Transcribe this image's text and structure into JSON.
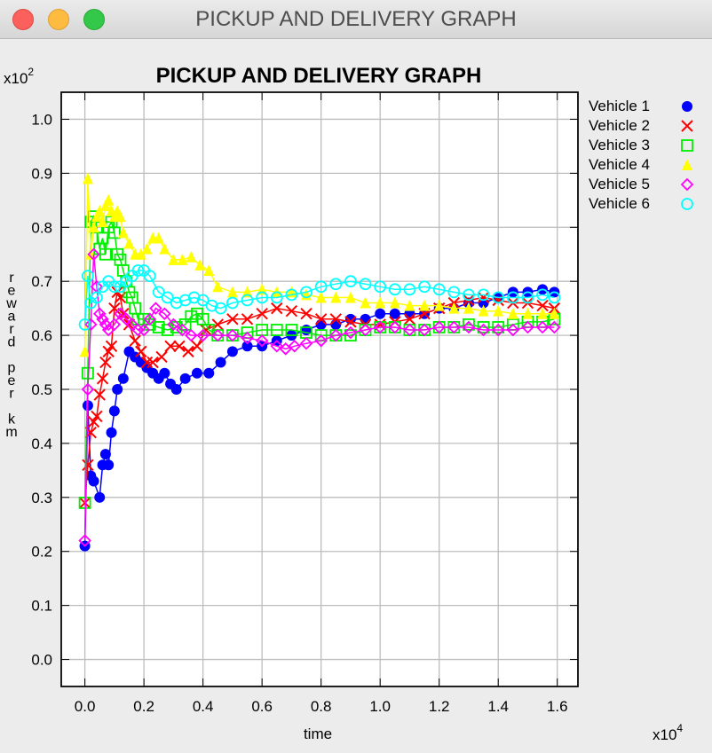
{
  "window": {
    "title": "PICKUP AND DELIVERY GRAPH"
  },
  "chart_data": {
    "type": "line",
    "title": "PICKUP AND DELIVERY GRAPH",
    "xlabel": "time",
    "ylabel": "reward per km",
    "x_scale_label": "x10^4",
    "y_scale_label": "x10^2",
    "x_ticks": [
      "0.0",
      "0.2",
      "0.4",
      "0.6",
      "0.8",
      "1.0",
      "1.2",
      "1.4",
      "1.6"
    ],
    "y_ticks": [
      "0.0",
      "0.1",
      "0.2",
      "0.3",
      "0.4",
      "0.5",
      "0.6",
      "0.7",
      "0.8",
      "0.9",
      "1.0"
    ],
    "xlim": [
      -0.08,
      1.67
    ],
    "ylim": [
      -0.05,
      1.05
    ],
    "grid": true,
    "legend_position": "right",
    "series": [
      {
        "name": "Vehicle 1",
        "color": "#0000ff",
        "marker": "filled-circle",
        "points": [
          [
            0.0,
            0.21
          ],
          [
            0.01,
            0.47
          ],
          [
            0.02,
            0.34
          ],
          [
            0.03,
            0.33
          ],
          [
            0.05,
            0.3
          ],
          [
            0.06,
            0.36
          ],
          [
            0.07,
            0.38
          ],
          [
            0.08,
            0.36
          ],
          [
            0.09,
            0.42
          ],
          [
            0.1,
            0.46
          ],
          [
            0.11,
            0.5
          ],
          [
            0.13,
            0.52
          ],
          [
            0.15,
            0.57
          ],
          [
            0.17,
            0.56
          ],
          [
            0.19,
            0.55
          ],
          [
            0.21,
            0.54
          ],
          [
            0.23,
            0.53
          ],
          [
            0.25,
            0.52
          ],
          [
            0.27,
            0.53
          ],
          [
            0.29,
            0.51
          ],
          [
            0.31,
            0.5
          ],
          [
            0.34,
            0.52
          ],
          [
            0.38,
            0.53
          ],
          [
            0.42,
            0.53
          ],
          [
            0.46,
            0.55
          ],
          [
            0.5,
            0.57
          ],
          [
            0.55,
            0.58
          ],
          [
            0.6,
            0.58
          ],
          [
            0.65,
            0.59
          ],
          [
            0.7,
            0.6
          ],
          [
            0.75,
            0.61
          ],
          [
            0.8,
            0.62
          ],
          [
            0.85,
            0.62
          ],
          [
            0.9,
            0.63
          ],
          [
            0.95,
            0.63
          ],
          [
            1.0,
            0.64
          ],
          [
            1.05,
            0.64
          ],
          [
            1.1,
            0.64
          ],
          [
            1.15,
            0.64
          ],
          [
            1.2,
            0.65
          ],
          [
            1.25,
            0.65
          ],
          [
            1.3,
            0.66
          ],
          [
            1.35,
            0.66
          ],
          [
            1.4,
            0.67
          ],
          [
            1.45,
            0.68
          ],
          [
            1.5,
            0.68
          ],
          [
            1.55,
            0.685
          ],
          [
            1.59,
            0.68
          ]
        ]
      },
      {
        "name": "Vehicle 2",
        "color": "#ff0000",
        "marker": "x",
        "points": [
          [
            0.0,
            0.29
          ],
          [
            0.01,
            0.36
          ],
          [
            0.02,
            0.42
          ],
          [
            0.03,
            0.44
          ],
          [
            0.04,
            0.45
          ],
          [
            0.05,
            0.49
          ],
          [
            0.06,
            0.52
          ],
          [
            0.07,
            0.55
          ],
          [
            0.08,
            0.57
          ],
          [
            0.09,
            0.58
          ],
          [
            0.1,
            0.65
          ],
          [
            0.11,
            0.68
          ],
          [
            0.12,
            0.67
          ],
          [
            0.13,
            0.64
          ],
          [
            0.15,
            0.62
          ],
          [
            0.17,
            0.59
          ],
          [
            0.19,
            0.57
          ],
          [
            0.21,
            0.55
          ],
          [
            0.23,
            0.55
          ],
          [
            0.26,
            0.56
          ],
          [
            0.29,
            0.58
          ],
          [
            0.32,
            0.58
          ],
          [
            0.35,
            0.57
          ],
          [
            0.38,
            0.58
          ],
          [
            0.41,
            0.61
          ],
          [
            0.45,
            0.62
          ],
          [
            0.5,
            0.63
          ],
          [
            0.55,
            0.63
          ],
          [
            0.6,
            0.64
          ],
          [
            0.65,
            0.65
          ],
          [
            0.7,
            0.645
          ],
          [
            0.75,
            0.64
          ],
          [
            0.8,
            0.63
          ],
          [
            0.85,
            0.63
          ],
          [
            0.9,
            0.625
          ],
          [
            0.95,
            0.62
          ],
          [
            1.0,
            0.62
          ],
          [
            1.05,
            0.625
          ],
          [
            1.1,
            0.63
          ],
          [
            1.15,
            0.64
          ],
          [
            1.2,
            0.65
          ],
          [
            1.25,
            0.66
          ],
          [
            1.3,
            0.665
          ],
          [
            1.35,
            0.67
          ],
          [
            1.4,
            0.665
          ],
          [
            1.45,
            0.66
          ],
          [
            1.5,
            0.66
          ],
          [
            1.55,
            0.655
          ],
          [
            1.59,
            0.65
          ]
        ]
      },
      {
        "name": "Vehicle 3",
        "color": "#00ee00",
        "marker": "open-square",
        "points": [
          [
            0.0,
            0.29
          ],
          [
            0.01,
            0.53
          ],
          [
            0.02,
            0.81
          ],
          [
            0.03,
            0.82
          ],
          [
            0.04,
            0.8
          ],
          [
            0.05,
            0.76
          ],
          [
            0.06,
            0.78
          ],
          [
            0.07,
            0.75
          ],
          [
            0.08,
            0.8
          ],
          [
            0.09,
            0.81
          ],
          [
            0.1,
            0.79
          ],
          [
            0.11,
            0.75
          ],
          [
            0.12,
            0.74
          ],
          [
            0.13,
            0.72
          ],
          [
            0.14,
            0.7
          ],
          [
            0.15,
            0.68
          ],
          [
            0.16,
            0.67
          ],
          [
            0.17,
            0.65
          ],
          [
            0.18,
            0.63
          ],
          [
            0.2,
            0.63
          ],
          [
            0.22,
            0.62
          ],
          [
            0.25,
            0.615
          ],
          [
            0.28,
            0.61
          ],
          [
            0.31,
            0.615
          ],
          [
            0.34,
            0.62
          ],
          [
            0.36,
            0.635
          ],
          [
            0.38,
            0.64
          ],
          [
            0.4,
            0.63
          ],
          [
            0.42,
            0.61
          ],
          [
            0.45,
            0.6
          ],
          [
            0.5,
            0.6
          ],
          [
            0.55,
            0.605
          ],
          [
            0.6,
            0.61
          ],
          [
            0.65,
            0.61
          ],
          [
            0.7,
            0.61
          ],
          [
            0.75,
            0.605
          ],
          [
            0.8,
            0.6
          ],
          [
            0.85,
            0.6
          ],
          [
            0.9,
            0.6
          ],
          [
            0.95,
            0.61
          ],
          [
            1.0,
            0.615
          ],
          [
            1.05,
            0.615
          ],
          [
            1.1,
            0.61
          ],
          [
            1.15,
            0.61
          ],
          [
            1.2,
            0.615
          ],
          [
            1.25,
            0.615
          ],
          [
            1.3,
            0.62
          ],
          [
            1.35,
            0.615
          ],
          [
            1.4,
            0.615
          ],
          [
            1.45,
            0.62
          ],
          [
            1.5,
            0.625
          ],
          [
            1.55,
            0.625
          ],
          [
            1.59,
            0.63
          ]
        ]
      },
      {
        "name": "Vehicle 4",
        "color": "#ffff00",
        "marker": "filled-triangle",
        "points": [
          [
            0.0,
            0.57
          ],
          [
            0.01,
            0.89
          ],
          [
            0.02,
            0.75
          ],
          [
            0.03,
            0.8
          ],
          [
            0.04,
            0.82
          ],
          [
            0.05,
            0.83
          ],
          [
            0.06,
            0.81
          ],
          [
            0.07,
            0.84
          ],
          [
            0.08,
            0.85
          ],
          [
            0.09,
            0.83
          ],
          [
            0.1,
            0.82
          ],
          [
            0.11,
            0.83
          ],
          [
            0.12,
            0.82
          ],
          [
            0.13,
            0.79
          ],
          [
            0.15,
            0.77
          ],
          [
            0.17,
            0.75
          ],
          [
            0.19,
            0.75
          ],
          [
            0.21,
            0.76
          ],
          [
            0.23,
            0.78
          ],
          [
            0.25,
            0.78
          ],
          [
            0.27,
            0.76
          ],
          [
            0.3,
            0.74
          ],
          [
            0.33,
            0.74
          ],
          [
            0.36,
            0.745
          ],
          [
            0.39,
            0.73
          ],
          [
            0.42,
            0.72
          ],
          [
            0.45,
            0.69
          ],
          [
            0.5,
            0.68
          ],
          [
            0.55,
            0.68
          ],
          [
            0.6,
            0.685
          ],
          [
            0.65,
            0.68
          ],
          [
            0.7,
            0.68
          ],
          [
            0.75,
            0.675
          ],
          [
            0.8,
            0.67
          ],
          [
            0.85,
            0.67
          ],
          [
            0.9,
            0.67
          ],
          [
            0.95,
            0.66
          ],
          [
            1.0,
            0.66
          ],
          [
            1.05,
            0.66
          ],
          [
            1.1,
            0.655
          ],
          [
            1.15,
            0.655
          ],
          [
            1.2,
            0.655
          ],
          [
            1.25,
            0.65
          ],
          [
            1.3,
            0.65
          ],
          [
            1.35,
            0.645
          ],
          [
            1.4,
            0.645
          ],
          [
            1.45,
            0.64
          ],
          [
            1.5,
            0.64
          ],
          [
            1.55,
            0.64
          ],
          [
            1.59,
            0.64
          ]
        ]
      },
      {
        "name": "Vehicle 5",
        "color": "#ff00ff",
        "marker": "open-diamond",
        "points": [
          [
            0.0,
            0.22
          ],
          [
            0.01,
            0.5
          ],
          [
            0.02,
            0.62
          ],
          [
            0.03,
            0.75
          ],
          [
            0.04,
            0.69
          ],
          [
            0.05,
            0.64
          ],
          [
            0.06,
            0.63
          ],
          [
            0.07,
            0.62
          ],
          [
            0.08,
            0.61
          ],
          [
            0.1,
            0.62
          ],
          [
            0.12,
            0.64
          ],
          [
            0.14,
            0.63
          ],
          [
            0.16,
            0.62
          ],
          [
            0.18,
            0.61
          ],
          [
            0.2,
            0.61
          ],
          [
            0.22,
            0.63
          ],
          [
            0.24,
            0.65
          ],
          [
            0.27,
            0.64
          ],
          [
            0.3,
            0.62
          ],
          [
            0.33,
            0.61
          ],
          [
            0.36,
            0.6
          ],
          [
            0.4,
            0.6
          ],
          [
            0.45,
            0.6
          ],
          [
            0.5,
            0.6
          ],
          [
            0.55,
            0.595
          ],
          [
            0.6,
            0.59
          ],
          [
            0.65,
            0.58
          ],
          [
            0.68,
            0.575
          ],
          [
            0.71,
            0.58
          ],
          [
            0.75,
            0.585
          ],
          [
            0.8,
            0.59
          ],
          [
            0.85,
            0.6
          ],
          [
            0.9,
            0.605
          ],
          [
            0.95,
            0.61
          ],
          [
            1.0,
            0.615
          ],
          [
            1.05,
            0.615
          ],
          [
            1.1,
            0.61
          ],
          [
            1.15,
            0.61
          ],
          [
            1.2,
            0.615
          ],
          [
            1.25,
            0.615
          ],
          [
            1.3,
            0.615
          ],
          [
            1.35,
            0.61
          ],
          [
            1.4,
            0.61
          ],
          [
            1.45,
            0.61
          ],
          [
            1.5,
            0.615
          ],
          [
            1.55,
            0.615
          ],
          [
            1.59,
            0.615
          ]
        ]
      },
      {
        "name": "Vehicle 6",
        "color": "#00ffff",
        "marker": "open-circle",
        "points": [
          [
            0.0,
            0.62
          ],
          [
            0.01,
            0.71
          ],
          [
            0.02,
            0.66
          ],
          [
            0.04,
            0.67
          ],
          [
            0.06,
            0.69
          ],
          [
            0.08,
            0.7
          ],
          [
            0.1,
            0.69
          ],
          [
            0.12,
            0.69
          ],
          [
            0.14,
            0.7
          ],
          [
            0.16,
            0.71
          ],
          [
            0.18,
            0.72
          ],
          [
            0.2,
            0.72
          ],
          [
            0.22,
            0.71
          ],
          [
            0.25,
            0.68
          ],
          [
            0.28,
            0.67
          ],
          [
            0.31,
            0.66
          ],
          [
            0.34,
            0.665
          ],
          [
            0.37,
            0.67
          ],
          [
            0.4,
            0.665
          ],
          [
            0.43,
            0.655
          ],
          [
            0.46,
            0.65
          ],
          [
            0.5,
            0.66
          ],
          [
            0.55,
            0.665
          ],
          [
            0.6,
            0.67
          ],
          [
            0.65,
            0.67
          ],
          [
            0.7,
            0.675
          ],
          [
            0.75,
            0.68
          ],
          [
            0.8,
            0.69
          ],
          [
            0.85,
            0.695
          ],
          [
            0.9,
            0.7
          ],
          [
            0.95,
            0.695
          ],
          [
            1.0,
            0.69
          ],
          [
            1.05,
            0.685
          ],
          [
            1.1,
            0.685
          ],
          [
            1.15,
            0.69
          ],
          [
            1.2,
            0.685
          ],
          [
            1.25,
            0.68
          ],
          [
            1.3,
            0.675
          ],
          [
            1.35,
            0.675
          ],
          [
            1.4,
            0.67
          ],
          [
            1.45,
            0.67
          ],
          [
            1.5,
            0.67
          ],
          [
            1.55,
            0.675
          ],
          [
            1.59,
            0.67
          ]
        ]
      }
    ]
  }
}
